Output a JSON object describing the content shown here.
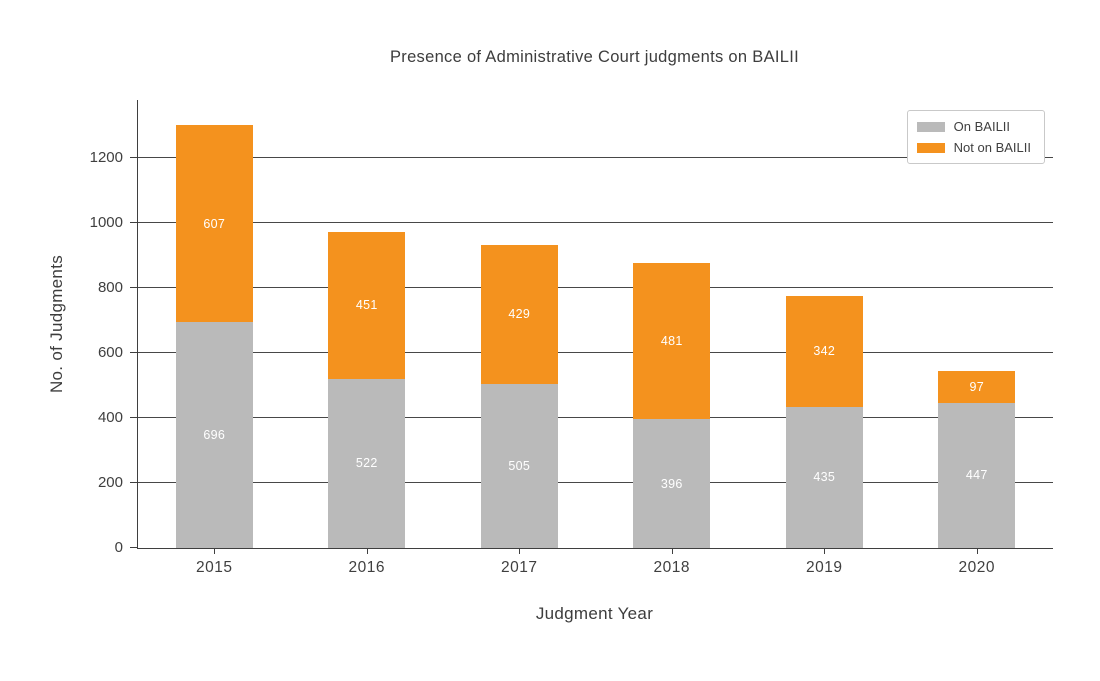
{
  "chart_data": {
    "type": "bar",
    "stacked": true,
    "title": "Presence of Administrative Court judgments on BAILII",
    "xlabel": "Judgment Year",
    "ylabel": "No. of Judgments",
    "categories": [
      "2015",
      "2016",
      "2017",
      "2018",
      "2019",
      "2020"
    ],
    "series": [
      {
        "name": "On BAILII",
        "color": "#bababa",
        "values": [
          696,
          522,
          505,
          396,
          435,
          447
        ]
      },
      {
        "name": "Not on BAILII",
        "color": "#f4921e",
        "values": [
          607,
          451,
          429,
          481,
          342,
          97
        ]
      }
    ],
    "totals": [
      1303,
      973,
      934,
      877,
      777,
      544
    ],
    "ylim": [
      0,
      1380
    ],
    "yticks": [
      0,
      200,
      400,
      600,
      800,
      1000,
      1200
    ],
    "grid": true,
    "legend_position": "upper right",
    "value_labels": true,
    "value_label_color": "#ffffff",
    "background_color": "#ffffff",
    "grid_color": "#474747",
    "text_color": "#3d3d3d"
  }
}
